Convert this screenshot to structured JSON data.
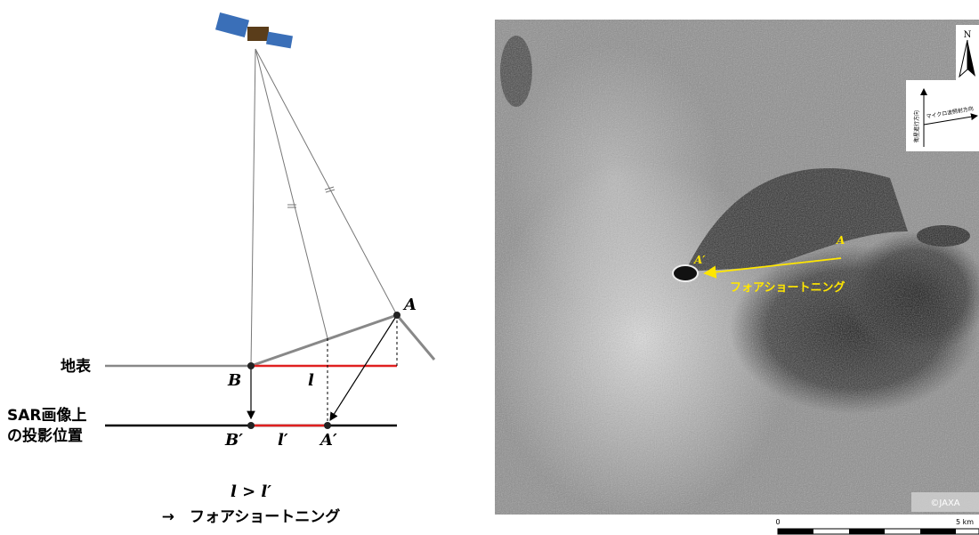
{
  "left_diagram": {
    "ground": "地表",
    "projection": [
      "SAR画像上",
      "の投影位置"
    ],
    "point_a": "A",
    "point_b": "B",
    "length_l": "l",
    "point_b_prime": "B′",
    "length_l_prime": "l′",
    "point_a_prime": "A′",
    "inequality": "l > l′",
    "conclusion": "→　フォアショートニング"
  },
  "sar_image": {
    "point_a_prime": "A′",
    "point_a": "A",
    "annotation": "フォアショートニング",
    "north": "N",
    "microwave_direction": "マイクロ波照射方向",
    "flight_direction": "衛星進行方向",
    "credit": "©JAXA",
    "scale_start": "0",
    "scale_end": "5 km"
  }
}
